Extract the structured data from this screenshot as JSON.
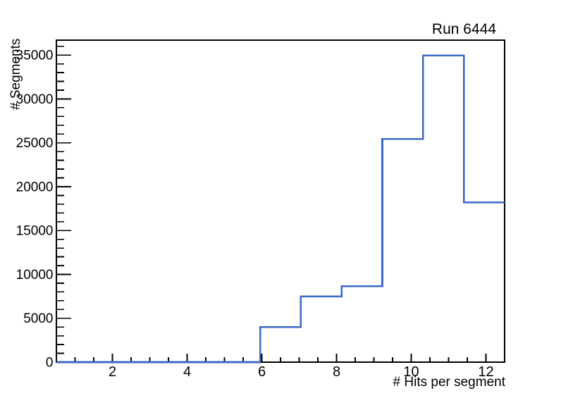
{
  "chart_data": {
    "type": "step-histogram",
    "title": "Run 6444",
    "xlabel": "# Hits per segment",
    "ylabel": "# Segments",
    "xlim": [
      0.5,
      12.5
    ],
    "ylim": [
      0,
      36700
    ],
    "bin_edges": [
      0.5,
      1.5909,
      2.6818,
      3.7727,
      4.8636,
      5.9545,
      7.0455,
      8.1364,
      9.2273,
      10.3182,
      11.4091,
      12.5
    ],
    "counts": [
      0,
      0,
      0,
      0,
      0,
      4000,
      7500,
      8650,
      25450,
      34950,
      18200
    ],
    "x_major_ticks": [
      2,
      4,
      6,
      8,
      10,
      12
    ],
    "x_tick_labels": [
      "2",
      "4",
      "6",
      "8",
      "10",
      "12"
    ],
    "x_minor_tick_start": 1,
    "x_minor_tick_step": 0.5,
    "x_minor_tick_end": 12,
    "y_major_ticks": [
      0,
      5000,
      10000,
      15000,
      20000,
      25000,
      30000,
      35000
    ],
    "y_tick_labels": [
      "0",
      "5000",
      "10000",
      "15000",
      "20000",
      "25000",
      "30000",
      "35000"
    ],
    "y_minor_tick_step": 1000,
    "y_minor_tick_max": 36000,
    "line_color": "#3a68c4",
    "axis_color": "#000000",
    "background_color": "#ffffff",
    "grid": false,
    "legend": null
  }
}
